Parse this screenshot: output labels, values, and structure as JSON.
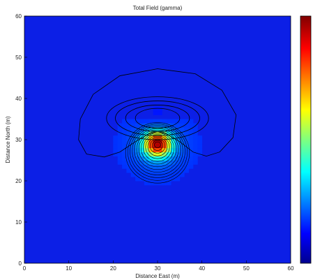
{
  "chart_data": {
    "type": "heatmap",
    "title": "Total Field (gamma)",
    "xlabel": "Distance East (m)",
    "ylabel": "Distance North (m)",
    "xlim": [
      0,
      60
    ],
    "ylim": [
      0,
      60
    ],
    "x_ticks": [
      0,
      10,
      20,
      30,
      40,
      50,
      60
    ],
    "y_ticks": [
      0,
      10,
      20,
      30,
      40,
      50,
      60
    ],
    "colormap": "jet",
    "colorbar": true,
    "contours": true,
    "anomaly": {
      "positive_peak": {
        "x": 30,
        "y": 29
      },
      "negative_low": {
        "x": 30,
        "y": 35
      },
      "outer_contour_extent": {
        "x": [
          12,
          49
        ],
        "y": [
          24,
          47
        ]
      }
    },
    "colors": {
      "background_field": "#0c1fe6",
      "contour": "#000000",
      "axis": "#000000"
    }
  }
}
